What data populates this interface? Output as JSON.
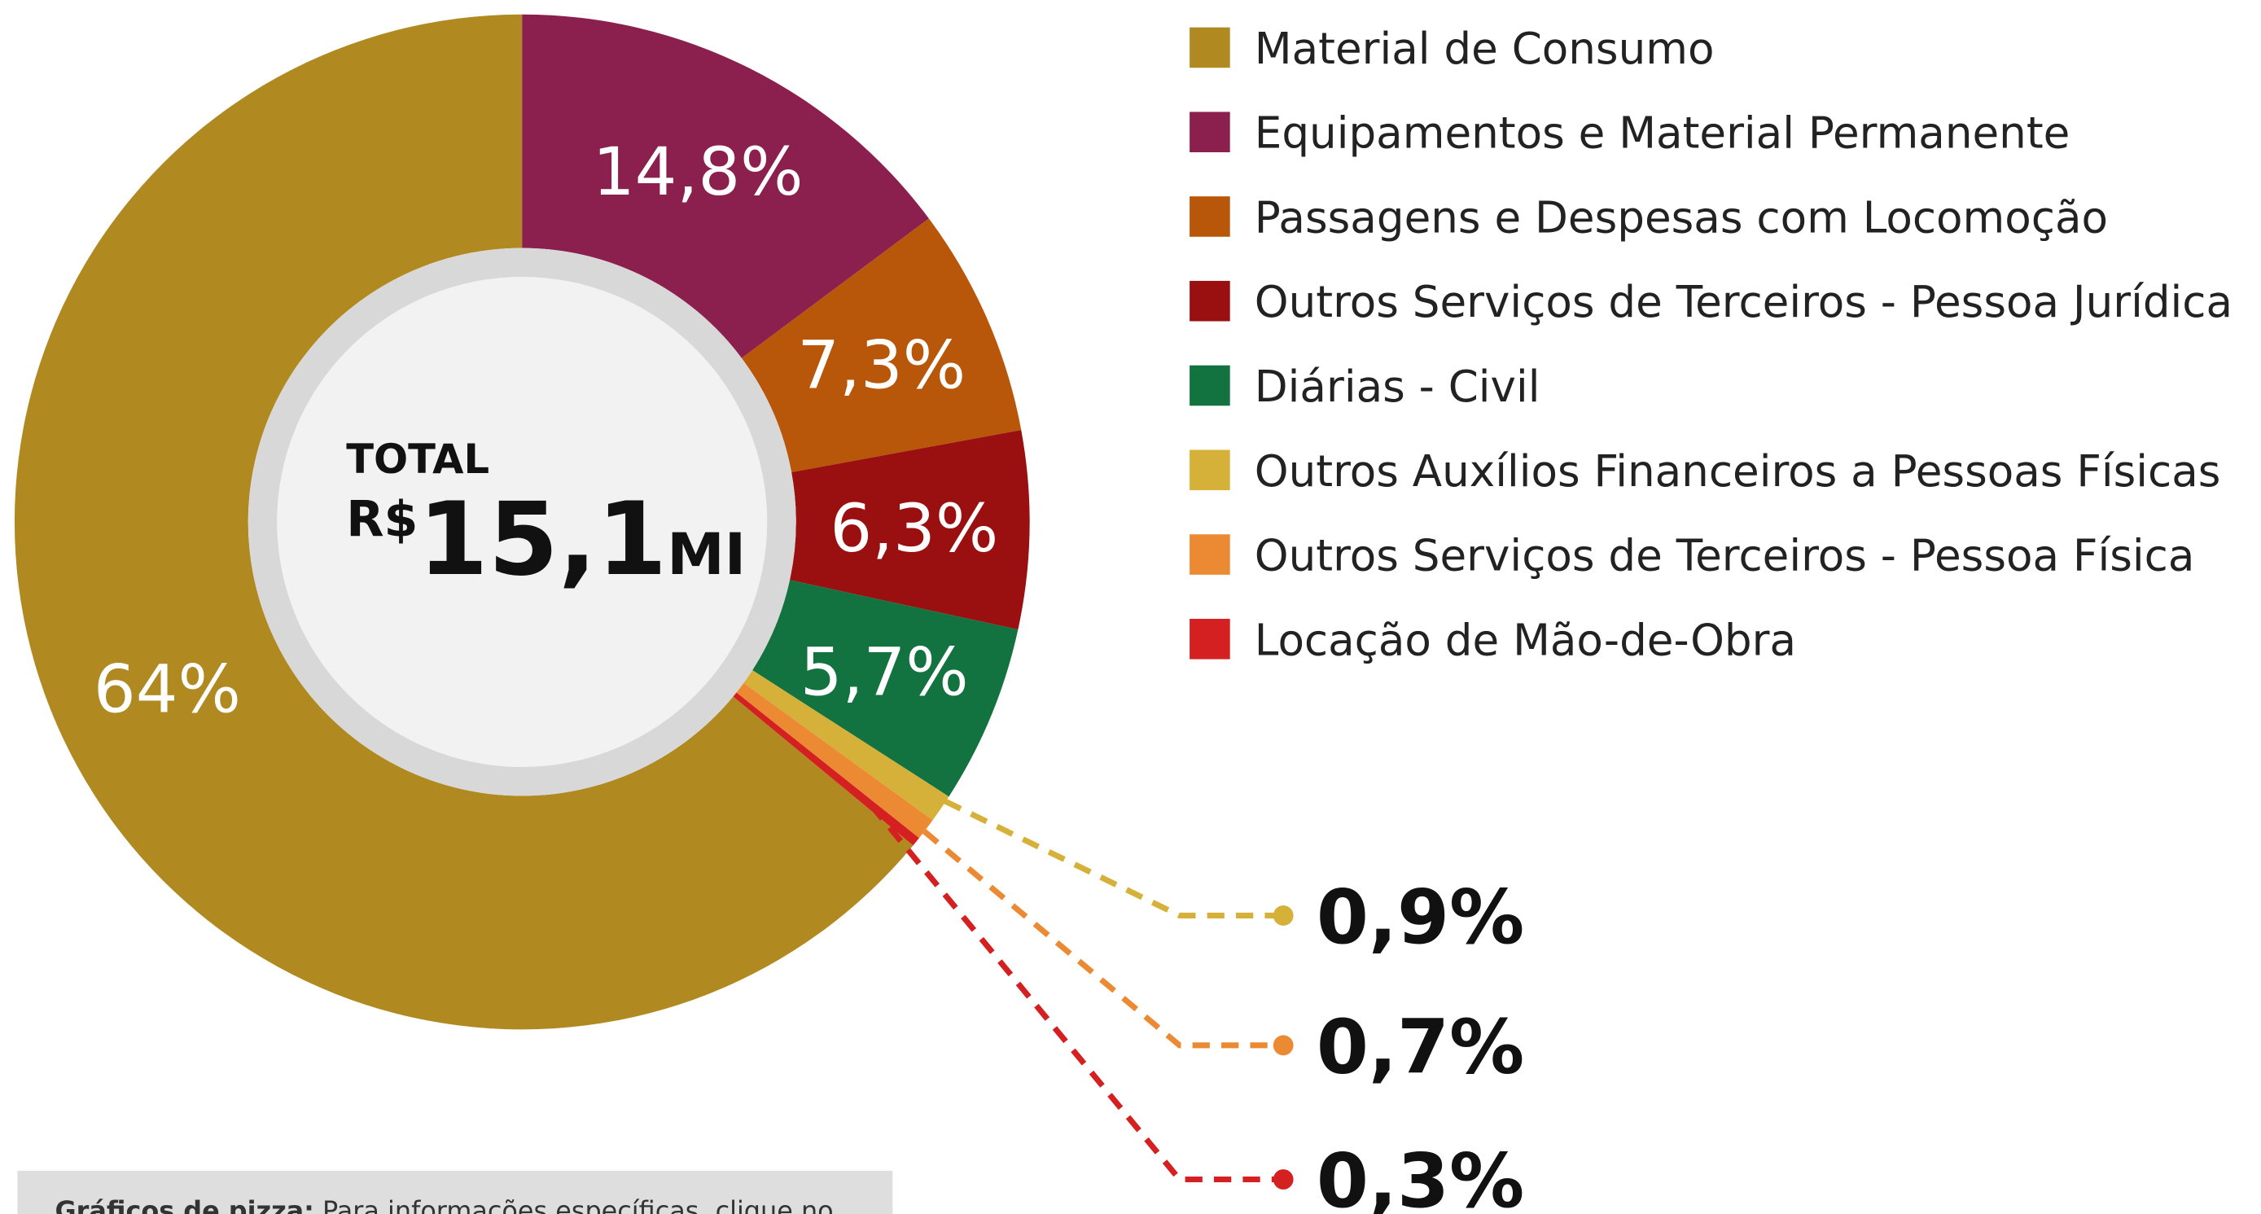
{
  "chart_data": {
    "type": "donut",
    "categories": [
      "Material de Consumo",
      "Equipamentos e Material Permanente",
      "Passagens e Despesas com Locomoção",
      "Outros Serviços de Terceiros - Pessoa Jurídica",
      "Diárias - Civil",
      "Outros Auxílios Financeiros a Pessoas Físicas",
      "Outros Serviços de Terceiros - Pessoa Física",
      "Locação de Mão-de-Obra"
    ],
    "values": [
      64,
      14.8,
      7.3,
      6.3,
      5.7,
      0.9,
      0.7,
      0.3
    ],
    "value_labels": [
      "64%",
      "14,8%",
      "7,3%",
      "6,3%",
      "5,7%",
      "0,9%",
      "0,7%",
      "0,3%"
    ],
    "colors": [
      "#b08a20",
      "#8b1f4e",
      "#b8560a",
      "#9a0f10",
      "#127340",
      "#d6b13a",
      "#ec8a34",
      "#d42020"
    ],
    "center": {
      "label": "TOTAL",
      "currency": "R$",
      "amount": "15,1",
      "unit": "MI"
    },
    "note": {
      "title": "Gráficos de pizza:",
      "text": "Para informações específicas, clique no"
    }
  }
}
